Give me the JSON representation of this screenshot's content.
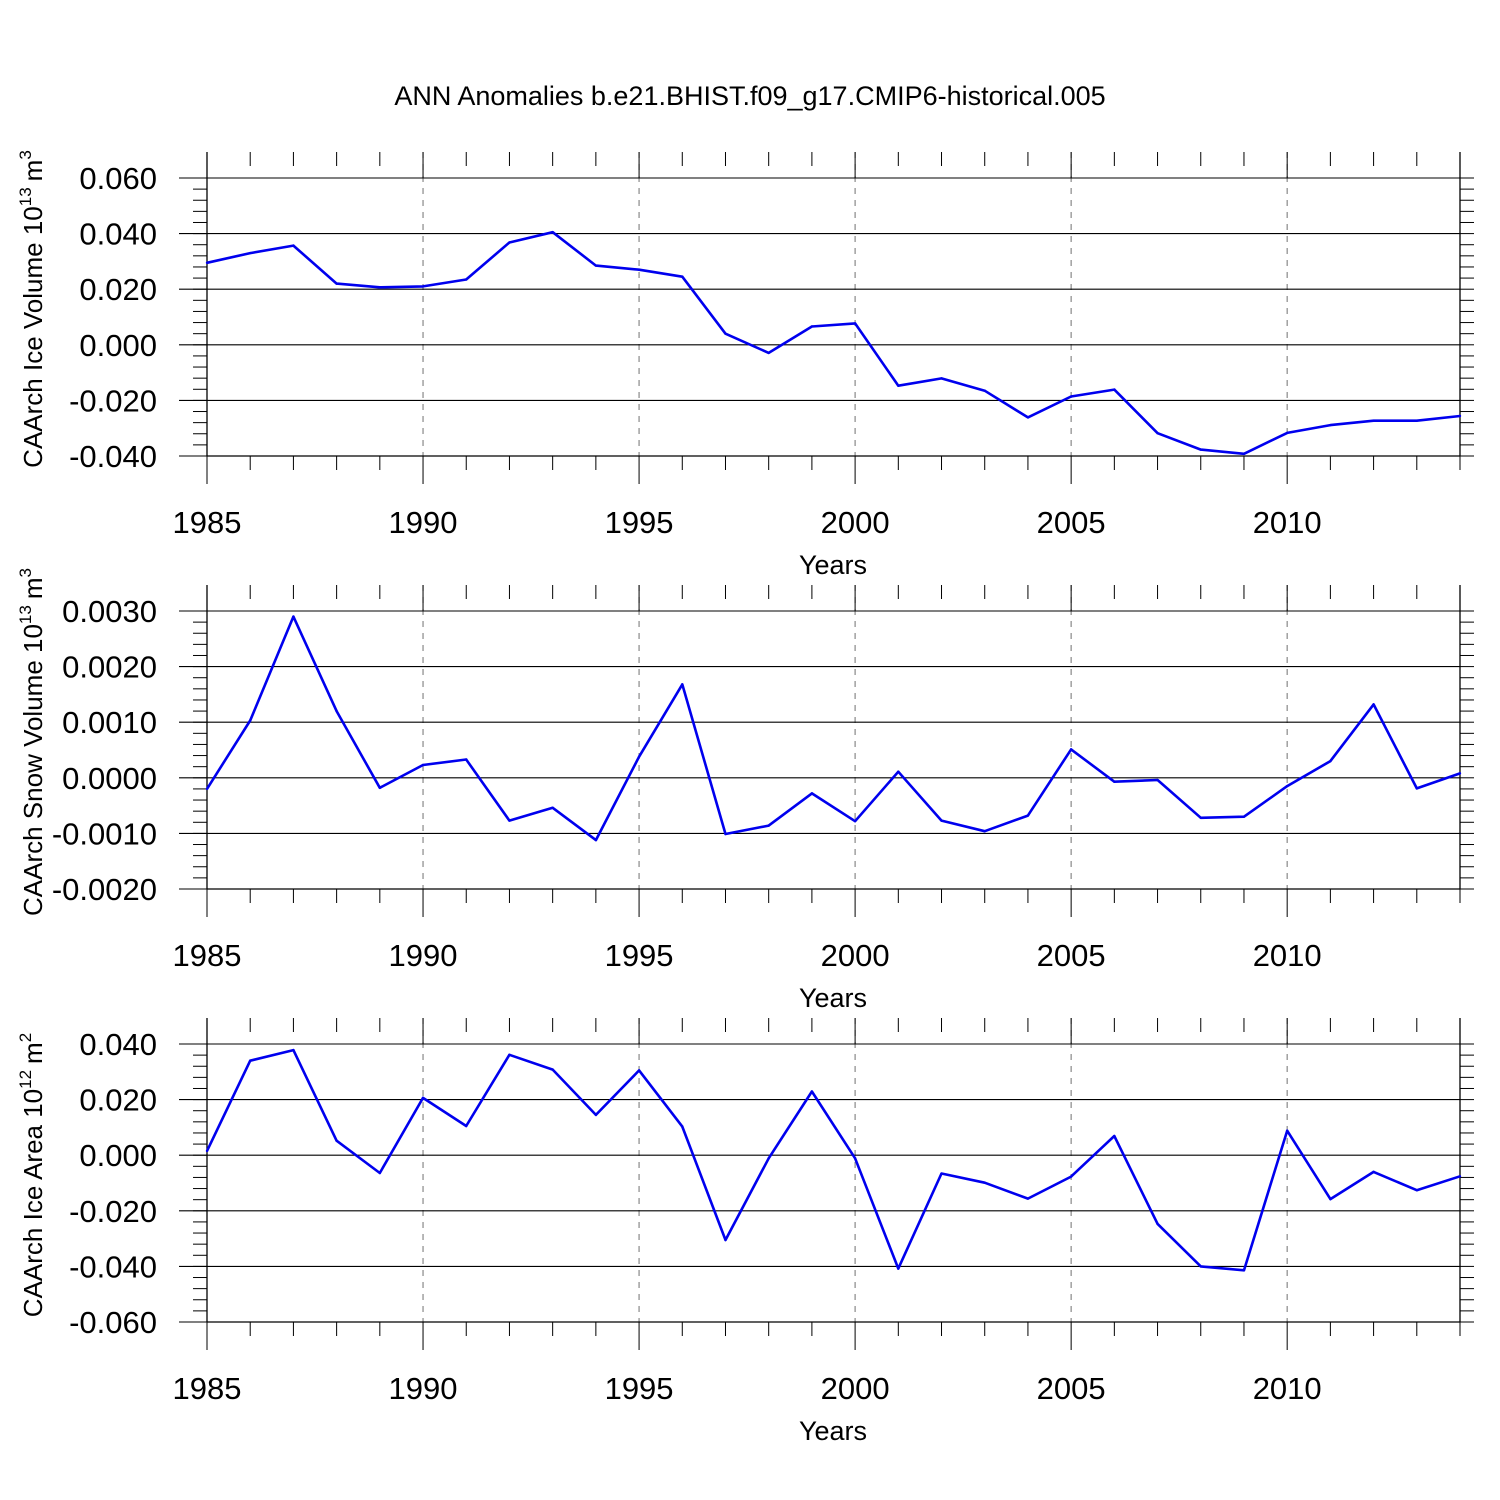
{
  "title": "ANN Anomalies b.e21.BHIST.f09_g17.CMIP6-historical.005",
  "colors": {
    "line": "#0000ee",
    "axis": "#000000",
    "grid": "#888888"
  },
  "chart_data": [
    {
      "type": "line",
      "ylabel_main": "CAArch Ice Volume 10",
      "ylabel_sup": "13",
      "ylabel_unit": "m",
      "ylabel_unit_sup": "3",
      "xlabel": "Years",
      "xlim": [
        1985,
        2014
      ],
      "ylim": [
        -0.04,
        0.06
      ],
      "yticks": [
        "0.060",
        "0.040",
        "0.020",
        "0.000",
        "-0.020",
        "-0.040"
      ],
      "ytick_values": [
        0.06,
        0.04,
        0.02,
        0.0,
        -0.02,
        -0.04
      ],
      "xticks": [
        "1985",
        "1990",
        "1995",
        "2000",
        "2005",
        "2010"
      ],
      "xtick_values": [
        1985,
        1990,
        1995,
        2000,
        2005,
        2010
      ],
      "x": [
        1985,
        1986,
        1987,
        1988,
        1989,
        1990,
        1991,
        1992,
        1993,
        1994,
        1995,
        1996,
        1997,
        1998,
        1999,
        2000,
        2001,
        2002,
        2003,
        2004,
        2005,
        2006,
        2007,
        2008,
        2009,
        2010,
        2011,
        2012,
        2013,
        2014
      ],
      "values": [
        0.0295,
        0.033,
        0.0357,
        0.022,
        0.0207,
        0.021,
        0.0235,
        0.0368,
        0.0405,
        0.0285,
        0.027,
        0.0245,
        0.004,
        -0.0029,
        0.0066,
        0.0077,
        -0.0147,
        -0.0121,
        -0.0165,
        -0.0261,
        -0.0186,
        -0.0161,
        -0.0318,
        -0.0377,
        -0.0392,
        -0.0317,
        -0.0289,
        -0.0273,
        -0.0273,
        -0.0256
      ]
    },
    {
      "type": "line",
      "ylabel_main": "CAArch Snow Volume 10",
      "ylabel_sup": "13",
      "ylabel_unit": "m",
      "ylabel_unit_sup": "3",
      "xlabel": "Years",
      "xlim": [
        1985,
        2014
      ],
      "ylim": [
        -0.002,
        0.003
      ],
      "yticks": [
        "0.0030",
        "0.0020",
        "0.0010",
        "0.0000",
        "-0.0010",
        "-0.0020"
      ],
      "ytick_values": [
        0.003,
        0.002,
        0.001,
        0.0,
        -0.001,
        -0.002
      ],
      "xticks": [
        "1985",
        "1990",
        "1995",
        "2000",
        "2005",
        "2010"
      ],
      "xtick_values": [
        1985,
        1990,
        1995,
        2000,
        2005,
        2010
      ],
      "x": [
        1985,
        1986,
        1987,
        1988,
        1989,
        1990,
        1991,
        1992,
        1993,
        1994,
        1995,
        1996,
        1997,
        1998,
        1999,
        2000,
        2001,
        2002,
        2003,
        2004,
        2005,
        2006,
        2007,
        2008,
        2009,
        2010,
        2011,
        2012,
        2013,
        2014
      ],
      "values": [
        -0.0002,
        0.00103,
        0.0029,
        0.0012,
        -0.00018,
        0.00023,
        0.00033,
        -0.00077,
        -0.00054,
        -0.00112,
        0.00038,
        0.00168,
        -0.00101,
        -0.00086,
        -0.00028,
        -0.00078,
        0.00011,
        -0.00077,
        -0.00096,
        -0.00068,
        0.00051,
        -7e-05,
        -4e-05,
        -0.00072,
        -0.0007,
        -0.00015,
        0.0003,
        0.00132,
        -0.00019,
        8e-05
      ]
    },
    {
      "type": "line",
      "ylabel_main": "CAArch Ice Area 10",
      "ylabel_sup": "12",
      "ylabel_unit": "m",
      "ylabel_unit_sup": "2",
      "xlabel": "Years",
      "xlim": [
        1985,
        2014
      ],
      "ylim": [
        -0.06,
        0.04
      ],
      "yticks": [
        "0.040",
        "0.020",
        "0.000",
        "-0.020",
        "-0.040",
        "-0.060"
      ],
      "ytick_values": [
        0.04,
        0.02,
        0.0,
        -0.02,
        -0.04,
        -0.06
      ],
      "xticks": [
        "1985",
        "1990",
        "1995",
        "2000",
        "2005",
        "2010"
      ],
      "xtick_values": [
        1985,
        1990,
        1995,
        2000,
        2005,
        2010
      ],
      "x": [
        1985,
        1986,
        1987,
        1988,
        1989,
        1990,
        1991,
        1992,
        1993,
        1994,
        1995,
        1996,
        1997,
        1998,
        1999,
        2000,
        2001,
        2002,
        2003,
        2004,
        2005,
        2006,
        2007,
        2008,
        2009,
        2010,
        2011,
        2012,
        2013,
        2014
      ],
      "values": [
        0.0015,
        0.034,
        0.0378,
        0.0052,
        -0.0064,
        0.0206,
        0.0105,
        0.0361,
        0.0308,
        0.0145,
        0.0305,
        0.0103,
        -0.0305,
        -0.0011,
        0.0229,
        -0.0011,
        -0.0408,
        -0.0066,
        -0.0099,
        -0.0156,
        -0.0077,
        0.0069,
        -0.0247,
        -0.04,
        -0.0414,
        0.0088,
        -0.0158,
        -0.006,
        -0.0126,
        -0.0076
      ]
    }
  ]
}
